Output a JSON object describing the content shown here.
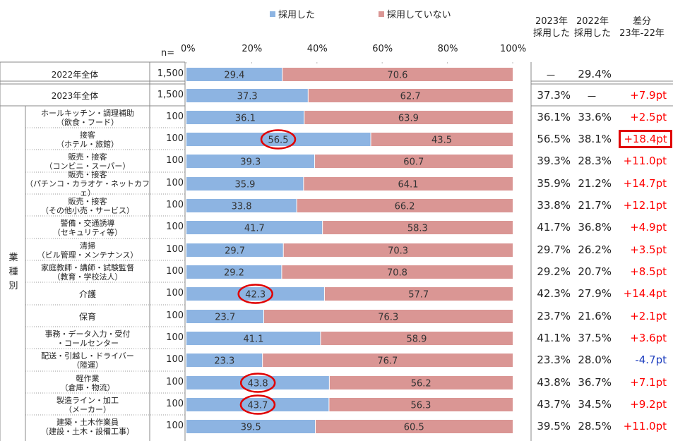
{
  "legend": {
    "adopted": "採用した",
    "not_adopted": "採用していない"
  },
  "header": {
    "n_label": "n=",
    "col2023": [
      "2023年",
      "採用した"
    ],
    "col2022": [
      "2022年",
      "採用した"
    ],
    "coldiff": [
      "差分",
      "23年-22年"
    ]
  },
  "vertical_label": [
    "業",
    "種",
    "別"
  ],
  "colors": {
    "adopted": "#8db4e2",
    "not_adopted": "#da9694",
    "positive": "#ff0000",
    "negative": "#1f3fbf",
    "highlight": "#e00000"
  },
  "chart_data": {
    "type": "bar",
    "orientation": "horizontal",
    "stacked": true,
    "xlim": [
      0,
      100
    ],
    "x_ticks": [
      "0%",
      "20%",
      "40%",
      "60%",
      "80%",
      "100%"
    ],
    "series": [
      {
        "name": "採用した",
        "values": [
          29.4,
          37.3,
          36.1,
          56.5,
          39.3,
          35.9,
          33.8,
          41.7,
          29.7,
          29.2,
          42.3,
          23.7,
          41.1,
          23.3,
          43.8,
          43.7,
          39.5
        ]
      },
      {
        "name": "採用していない",
        "values": [
          70.6,
          62.7,
          63.9,
          43.5,
          60.7,
          64.1,
          66.2,
          58.3,
          70.3,
          70.8,
          57.7,
          76.3,
          58.9,
          76.7,
          56.2,
          56.3,
          60.5
        ]
      }
    ],
    "value_labels_adopted": [
      "29.4",
      "37.3",
      "36.1",
      "56.5",
      "39.3",
      "35.9",
      "33.8",
      "41.7",
      "29.7",
      "29.2",
      "42.3",
      "23.7",
      "41.1",
      "23.3",
      "43.8",
      "43.7",
      "39.5"
    ],
    "value_labels_not": [
      "70.6",
      "62.7",
      "63.9",
      "43.5",
      "60.7",
      "64.1",
      "66.2",
      "58.3",
      "70.3",
      "70.8",
      "57.7",
      "76.3",
      "58.9",
      "76.7",
      "56.2",
      "56.3",
      "60.5"
    ],
    "circled_rows": [
      3,
      10,
      14,
      15
    ]
  },
  "rows": [
    {
      "label": [
        "2022年全体"
      ],
      "n": "1,500",
      "y2023": "－",
      "y2022": "29.4%",
      "diff": ""
    },
    {
      "label": [
        "2023年全体"
      ],
      "n": "1,500",
      "y2023": "37.3%",
      "y2022": "－",
      "diff": "+7.9pt"
    },
    {
      "label": [
        "ホールキッチン・調理補助",
        "（飲食・フード）"
      ],
      "n": "100",
      "y2023": "36.1%",
      "y2022": "33.6%",
      "diff": "+2.5pt"
    },
    {
      "label": [
        "接客",
        "（ホテル・旅館）"
      ],
      "n": "100",
      "y2023": "56.5%",
      "y2022": "38.1%",
      "diff": "+18.4pt"
    },
    {
      "label": [
        "販売・接客",
        "（コンビニ・スーパー）"
      ],
      "n": "100",
      "y2023": "39.3%",
      "y2022": "28.3%",
      "diff": "+11.0pt"
    },
    {
      "label": [
        "販売・接客",
        "（パチンコ・カラオケ・ネットカフェ）"
      ],
      "n": "100",
      "y2023": "35.9%",
      "y2022": "21.2%",
      "diff": "+14.7pt"
    },
    {
      "label": [
        "販売・接客",
        "（その他小売・サービス）"
      ],
      "n": "100",
      "y2023": "33.8%",
      "y2022": "21.7%",
      "diff": "+12.1pt"
    },
    {
      "label": [
        "警備・交通誘導",
        "（セキュリティ等）"
      ],
      "n": "100",
      "y2023": "41.7%",
      "y2022": "36.8%",
      "diff": "+4.9pt"
    },
    {
      "label": [
        "清掃",
        "（ビル管理・メンテナンス）"
      ],
      "n": "100",
      "y2023": "29.7%",
      "y2022": "26.2%",
      "diff": "+3.5pt"
    },
    {
      "label": [
        "家庭教師・講師・試験監督",
        "（教育・学校法人）"
      ],
      "n": "100",
      "y2023": "29.2%",
      "y2022": "20.7%",
      "diff": "+8.5pt"
    },
    {
      "label": [
        "介護"
      ],
      "n": "100",
      "y2023": "42.3%",
      "y2022": "27.9%",
      "diff": "+14.4pt"
    },
    {
      "label": [
        "保育"
      ],
      "n": "100",
      "y2023": "23.7%",
      "y2022": "21.6%",
      "diff": "+2.1pt"
    },
    {
      "label": [
        "事務・データ入力・受付",
        "・コールセンター"
      ],
      "n": "100",
      "y2023": "41.1%",
      "y2022": "37.5%",
      "diff": "+3.6pt"
    },
    {
      "label": [
        "配送・引越し・ドライバー",
        "（陸運）"
      ],
      "n": "100",
      "y2023": "23.3%",
      "y2022": "28.0%",
      "diff": "-4.7pt"
    },
    {
      "label": [
        "軽作業",
        "（倉庫・物流）"
      ],
      "n": "100",
      "y2023": "43.8%",
      "y2022": "36.7%",
      "diff": "+7.1pt"
    },
    {
      "label": [
        "製造ライン・加工",
        "（メーカー）"
      ],
      "n": "100",
      "y2023": "43.7%",
      "y2022": "34.5%",
      "diff": "+9.2pt"
    },
    {
      "label": [
        "建築・土木作業員",
        "（建設・土木・設備工事）"
      ],
      "n": "100",
      "y2023": "39.5%",
      "y2022": "28.5%",
      "diff": "+11.0pt"
    }
  ],
  "boxed_diff_row": 3
}
